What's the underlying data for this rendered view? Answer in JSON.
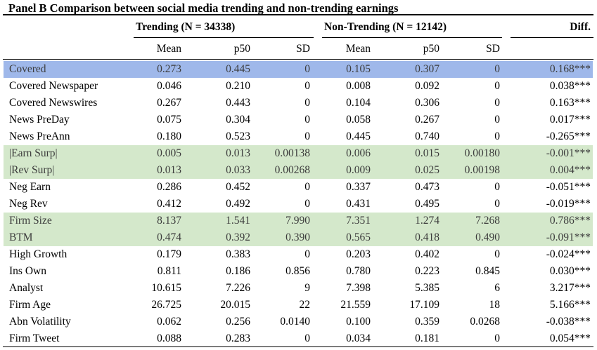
{
  "title": "Panel B Comparison between social media trending and non-trending earnings",
  "groups": {
    "trending": "Trending (N = 34338)",
    "nontrending": "Non-Trending (N = 12142)",
    "diff": "Diff."
  },
  "columns": [
    "Mean",
    "p50",
    "SD",
    "Mean",
    "p50",
    "SD"
  ],
  "colors": {
    "blue_highlight": "#9fb8ea",
    "green_highlight": "#d4e8cb"
  },
  "rows": [
    {
      "label": "Covered",
      "values": [
        "0.273",
        "0.445",
        "0",
        "0.105",
        "0.307",
        "0",
        "0.168***"
      ]
    },
    {
      "label": "Covered Newspaper",
      "values": [
        "0.046",
        "0.210",
        "0",
        "0.008",
        "0.092",
        "0",
        "0.038***"
      ]
    },
    {
      "label": "Covered Newswires",
      "values": [
        "0.267",
        "0.443",
        "0",
        "0.104",
        "0.306",
        "0",
        "0.163***"
      ]
    },
    {
      "label": "News PreDay",
      "values": [
        "0.075",
        "0.304",
        "0",
        "0.058",
        "0.267",
        "0",
        "0.017***"
      ]
    },
    {
      "label": "News PreAnn",
      "values": [
        "0.180",
        "0.523",
        "0",
        "0.445",
        "0.740",
        "0",
        "-0.265***"
      ]
    },
    {
      "label": "|Earn Surp|",
      "values": [
        "0.005",
        "0.013",
        "0.00138",
        "0.006",
        "0.015",
        "0.00180",
        "-0.001***"
      ]
    },
    {
      "label": "|Rev Surp|",
      "values": [
        "0.013",
        "0.033",
        "0.00268",
        "0.009",
        "0.025",
        "0.00198",
        "0.004***"
      ]
    },
    {
      "label": "Neg Earn",
      "values": [
        "0.286",
        "0.452",
        "0",
        "0.337",
        "0.473",
        "0",
        "-0.051***"
      ]
    },
    {
      "label": "Neg Rev",
      "values": [
        "0.412",
        "0.492",
        "0",
        "0.431",
        "0.495",
        "0",
        "-0.019***"
      ]
    },
    {
      "label": "Firm Size",
      "values": [
        "8.137",
        "1.541",
        "7.990",
        "7.351",
        "1.274",
        "7.268",
        "0.786***"
      ]
    },
    {
      "label": "BTM",
      "values": [
        "0.474",
        "0.392",
        "0.390",
        "0.565",
        "0.418",
        "0.490",
        "-0.091***"
      ]
    },
    {
      "label": "High Growth",
      "values": [
        "0.179",
        "0.383",
        "0",
        "0.203",
        "0.402",
        "0",
        "-0.024***"
      ]
    },
    {
      "label": "Ins Own",
      "values": [
        "0.811",
        "0.186",
        "0.856",
        "0.780",
        "0.223",
        "0.845",
        "0.030***"
      ]
    },
    {
      "label": "Analyst",
      "values": [
        "10.615",
        "7.226",
        "9",
        "7.398",
        "5.385",
        "6",
        "3.217***"
      ]
    },
    {
      "label": "Firm Age",
      "values": [
        "26.725",
        "20.015",
        "22",
        "21.559",
        "17.109",
        "18",
        "5.166***"
      ]
    },
    {
      "label": "Abn Volatility",
      "values": [
        "0.062",
        "0.256",
        "0.0140",
        "0.100",
        "0.359",
        "0.0268",
        "-0.038***"
      ]
    },
    {
      "label": "Firm Tweet",
      "values": [
        "0.088",
        "0.283",
        "0",
        "0.034",
        "0.181",
        "0",
        "0.054***"
      ]
    }
  ]
}
